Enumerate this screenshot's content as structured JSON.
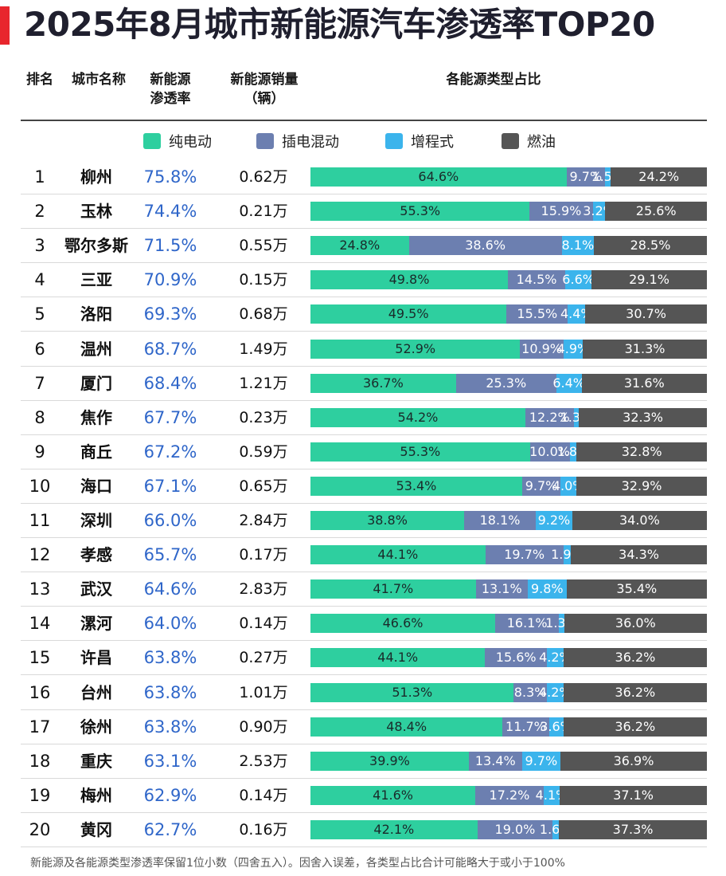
{
  "title": "2025年8月城市新能源汽车渗透率TOP20",
  "headers": {
    "rank": "排名",
    "city": "城市名称",
    "rate_line1": "新能源",
    "rate_line2": "渗透率",
    "sales_line1": "新能源销量",
    "sales_line2": "（辆）",
    "share": "各能源类型占比"
  },
  "colors": {
    "ev": "#2ecf9f",
    "phev": "#6c7fb0",
    "erev": "#3bb4ec",
    "fuel": "#555555"
  },
  "legend": {
    "ev": "纯电动",
    "phev": "插电混动",
    "erev": "增程式",
    "fuel": "燃油"
  },
  "footnote": "新能源及各能源类型渗透率保留1位小数（四舍五入）。因舍入误差，各类型占比合计可能略大于或小于100%",
  "chart_data": {
    "type": "bar",
    "title": "2025年8月城市新能源汽车渗透率TOP20",
    "stacked": true,
    "orientation": "horizontal",
    "series_names": [
      "纯电动",
      "插电混动",
      "增程式",
      "燃油"
    ],
    "rows": [
      {
        "rank": "1",
        "city": "柳州",
        "rate": "75.8%",
        "sales": "0.62万",
        "ev": 64.6,
        "phev": 9.7,
        "erev": 1.5,
        "fuel": 24.2,
        "labels": [
          "64.6%",
          "9.7%",
          "1.5%",
          "24.2%"
        ]
      },
      {
        "rank": "2",
        "city": "玉林",
        "rate": "74.4%",
        "sales": "0.21万",
        "ev": 55.3,
        "phev": 15.9,
        "erev": 3.2,
        "fuel": 25.6,
        "labels": [
          "55.3%",
          "15.9%",
          "3.2%",
          "25.6%"
        ]
      },
      {
        "rank": "3",
        "city": "鄂尔多斯",
        "rate": "71.5%",
        "sales": "0.55万",
        "ev": 24.8,
        "phev": 38.6,
        "erev": 8.1,
        "fuel": 28.5,
        "labels": [
          "24.8%",
          "38.6%",
          "8.1%",
          "28.5%"
        ]
      },
      {
        "rank": "4",
        "city": "三亚",
        "rate": "70.9%",
        "sales": "0.15万",
        "ev": 49.8,
        "phev": 14.5,
        "erev": 6.6,
        "fuel": 29.1,
        "labels": [
          "49.8%",
          "14.5%",
          "6.6%",
          "29.1%"
        ]
      },
      {
        "rank": "5",
        "city": "洛阳",
        "rate": "69.3%",
        "sales": "0.68万",
        "ev": 49.5,
        "phev": 15.5,
        "erev": 4.4,
        "fuel": 30.7,
        "labels": [
          "49.5%",
          "15.5%",
          "4.4%",
          "30.7%"
        ]
      },
      {
        "rank": "6",
        "city": "温州",
        "rate": "68.7%",
        "sales": "1.49万",
        "ev": 52.9,
        "phev": 10.9,
        "erev": 4.9,
        "fuel": 31.3,
        "labels": [
          "52.9%",
          "10.9%",
          "4.9%",
          "31.3%"
        ]
      },
      {
        "rank": "7",
        "city": "厦门",
        "rate": "68.4%",
        "sales": "1.21万",
        "ev": 36.7,
        "phev": 25.3,
        "erev": 6.4,
        "fuel": 31.6,
        "labels": [
          "36.7%",
          "25.3%",
          "6.4%",
          "31.6%"
        ]
      },
      {
        "rank": "8",
        "city": "焦作",
        "rate": "67.7%",
        "sales": "0.23万",
        "ev": 54.2,
        "phev": 12.2,
        "erev": 1.3,
        "fuel": 32.3,
        "labels": [
          "54.2%",
          "12.2%",
          "1.3%",
          "32.3%"
        ]
      },
      {
        "rank": "9",
        "city": "商丘",
        "rate": "67.2%",
        "sales": "0.59万",
        "ev": 55.3,
        "phev": 10.0,
        "erev": 1.8,
        "fuel": 32.8,
        "labels": [
          "55.3%",
          "10.0%",
          "1.8%",
          "32.8%"
        ]
      },
      {
        "rank": "10",
        "city": "海口",
        "rate": "67.1%",
        "sales": "0.65万",
        "ev": 53.4,
        "phev": 9.7,
        "erev": 4.0,
        "fuel": 32.9,
        "labels": [
          "53.4%",
          "9.7%",
          "4.0%",
          "32.9%"
        ]
      },
      {
        "rank": "11",
        "city": "深圳",
        "rate": "66.0%",
        "sales": "2.84万",
        "ev": 38.8,
        "phev": 18.1,
        "erev": 9.2,
        "fuel": 34.0,
        "labels": [
          "38.8%",
          "18.1%",
          "9.2%",
          "34.0%"
        ]
      },
      {
        "rank": "12",
        "city": "孝感",
        "rate": "65.7%",
        "sales": "0.17万",
        "ev": 44.1,
        "phev": 19.7,
        "erev": 1.9,
        "fuel": 34.3,
        "labels": [
          "44.1%",
          "19.7%",
          "1.9%",
          "34.3%"
        ]
      },
      {
        "rank": "13",
        "city": "武汉",
        "rate": "64.6%",
        "sales": "2.83万",
        "ev": 41.7,
        "phev": 13.1,
        "erev": 9.8,
        "fuel": 35.4,
        "labels": [
          "41.7%",
          "13.1%",
          "9.8%",
          "35.4%"
        ]
      },
      {
        "rank": "14",
        "city": "漯河",
        "rate": "64.0%",
        "sales": "0.14万",
        "ev": 46.6,
        "phev": 16.1,
        "erev": 1.3,
        "fuel": 36.0,
        "labels": [
          "46.6%",
          "16.1%",
          "1.3%",
          "36.0%"
        ]
      },
      {
        "rank": "15",
        "city": "许昌",
        "rate": "63.8%",
        "sales": "0.27万",
        "ev": 44.1,
        "phev": 15.6,
        "erev": 4.2,
        "fuel": 36.2,
        "labels": [
          "44.1%",
          "15.6%",
          "4.2%",
          "36.2%"
        ]
      },
      {
        "rank": "16",
        "city": "台州",
        "rate": "63.8%",
        "sales": "1.01万",
        "ev": 51.3,
        "phev": 8.3,
        "erev": 4.2,
        "fuel": 36.2,
        "labels": [
          "51.3%",
          "8.3%",
          "4.2%",
          "36.2%"
        ]
      },
      {
        "rank": "17",
        "city": "徐州",
        "rate": "63.8%",
        "sales": "0.90万",
        "ev": 48.4,
        "phev": 11.7,
        "erev": 3.6,
        "fuel": 36.2,
        "labels": [
          "48.4%",
          "11.7%",
          "3.6%",
          "36.2%"
        ]
      },
      {
        "rank": "18",
        "city": "重庆",
        "rate": "63.1%",
        "sales": "2.53万",
        "ev": 39.9,
        "phev": 13.4,
        "erev": 9.7,
        "fuel": 36.9,
        "labels": [
          "39.9%",
          "13.4%",
          "9.7%",
          "36.9%"
        ]
      },
      {
        "rank": "19",
        "city": "梅州",
        "rate": "62.9%",
        "sales": "0.14万",
        "ev": 41.6,
        "phev": 17.2,
        "erev": 4.1,
        "fuel": 37.1,
        "labels": [
          "41.6%",
          "17.2%",
          "4.1%",
          "37.1%"
        ]
      },
      {
        "rank": "20",
        "city": "黄冈",
        "rate": "62.7%",
        "sales": "0.16万",
        "ev": 42.1,
        "phev": 19.0,
        "erev": 1.6,
        "fuel": 37.3,
        "labels": [
          "42.1%",
          "19.0%",
          "1.6%",
          "37.3%"
        ]
      }
    ]
  }
}
